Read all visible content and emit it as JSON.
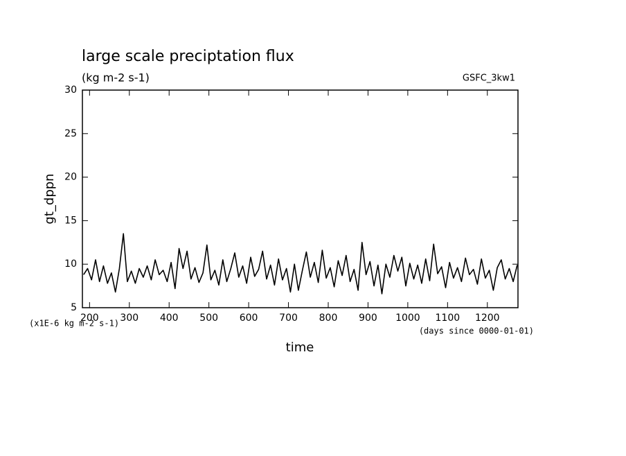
{
  "chart_data": {
    "type": "line",
    "title": "large scale preciptation flux",
    "subtitle": "(kg m-2 s-1)",
    "annotation": "GSFC_3kw1",
    "ylabel": "gt_dppn",
    "xlabel": "time",
    "y_unit_note": "(x1E-6 kg m-2 s-1)",
    "x_unit_note": "(days since 0000-01-01)",
    "color": "#000000",
    "xlim": [
      182,
      1277
    ],
    "xticks": [
      200,
      300,
      400,
      500,
      600,
      700,
      800,
      900,
      1000,
      1100,
      1200
    ],
    "ylim": [
      5,
      30
    ],
    "yticks": [
      5,
      10,
      15,
      20,
      25,
      30
    ],
    "x": [
      185,
      195,
      205,
      215,
      225,
      235,
      245,
      255,
      265,
      275,
      285,
      295,
      305,
      315,
      325,
      335,
      345,
      355,
      365,
      375,
      385,
      395,
      405,
      415,
      425,
      435,
      445,
      455,
      465,
      475,
      485,
      495,
      505,
      515,
      525,
      535,
      545,
      555,
      565,
      575,
      585,
      595,
      605,
      615,
      625,
      635,
      645,
      655,
      665,
      675,
      685,
      695,
      705,
      715,
      725,
      735,
      745,
      755,
      765,
      775,
      785,
      795,
      805,
      815,
      825,
      835,
      845,
      855,
      865,
      875,
      885,
      895,
      905,
      915,
      925,
      935,
      945,
      955,
      965,
      975,
      985,
      995,
      1005,
      1015,
      1025,
      1035,
      1045,
      1055,
      1065,
      1075,
      1085,
      1095,
      1105,
      1115,
      1125,
      1135,
      1145,
      1155,
      1165,
      1175,
      1185,
      1195,
      1205,
      1215,
      1225,
      1235,
      1245,
      1255,
      1265,
      1275
    ],
    "values": [
      8.8,
      9.5,
      8.2,
      10.5,
      8.0,
      9.8,
      7.8,
      9.0,
      6.8,
      9.5,
      13.5,
      8.0,
      9.2,
      7.8,
      9.5,
      8.5,
      9.8,
      8.2,
      10.5,
      8.8,
      9.3,
      8.0,
      10.2,
      7.2,
      11.8,
      9.5,
      11.5,
      8.3,
      9.6,
      7.9,
      9.0,
      12.2,
      8.2,
      9.3,
      7.6,
      10.5,
      8.0,
      9.5,
      11.3,
      8.5,
      9.8,
      7.8,
      10.8,
      8.6,
      9.4,
      11.5,
      8.3,
      9.9,
      7.6,
      10.6,
      8.2,
      9.5,
      6.8,
      10.0,
      7.0,
      9.3,
      11.4,
      8.5,
      10.2,
      7.9,
      11.6,
      8.4,
      9.6,
      7.4,
      10.4,
      8.7,
      11.0,
      8.0,
      9.4,
      7.0,
      12.5,
      8.8,
      10.3,
      7.5,
      9.9,
      6.6,
      10.0,
      8.5,
      11.0,
      9.2,
      10.8,
      7.5,
      10.1,
      8.3,
      9.9,
      7.8,
      10.6,
      8.1,
      12.3,
      8.9,
      9.7,
      7.3,
      10.2,
      8.4,
      9.6,
      8.0,
      10.7,
      8.8,
      9.4,
      7.7,
      10.6,
      8.4,
      9.3,
      7.0,
      9.6,
      10.5,
      8.3,
      9.5,
      8.0,
      9.9
    ]
  }
}
